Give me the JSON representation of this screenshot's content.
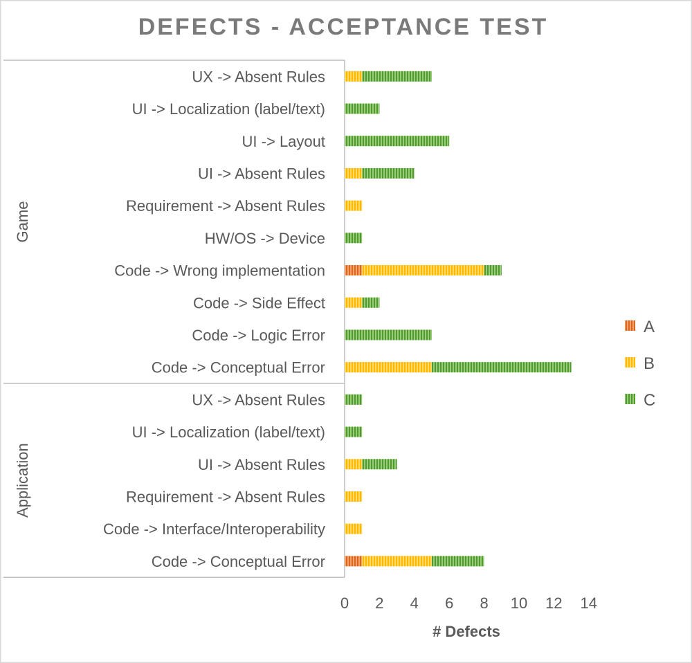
{
  "chart_data": {
    "type": "bar",
    "orientation": "horizontal",
    "stacked": true,
    "title": "DEFECTS - ACCEPTANCE TEST",
    "xlabel": "# Defects",
    "ylabel": "",
    "xlim": [
      0,
      14
    ],
    "xticks": [
      0,
      2,
      4,
      6,
      8,
      10,
      12,
      14
    ],
    "grid": false,
    "legend_position": "right",
    "groups": [
      {
        "name": "Game",
        "categories": [
          "UX -> Absent Rules",
          "UI -> Localization (label/text)",
          "UI -> Layout",
          "UI -> Absent Rules",
          "Requirement -> Absent Rules",
          "HW/OS -> Device",
          "Code -> Wrong implementation",
          "Code -> Side Effect",
          "Code -> Logic Error",
          "Code -> Conceptual Error"
        ]
      },
      {
        "name": "Application",
        "categories": [
          "UX -> Absent Rules",
          "UI -> Localization (label/text)",
          "UI -> Absent Rules",
          "Requirement -> Absent Rules",
          "Code -> Interface/Interoperability",
          "Code -> Conceptual Error"
        ]
      }
    ],
    "series": [
      {
        "name": "A",
        "color": "#ED7D31",
        "values": [
          0,
          0,
          0,
          0,
          0,
          0,
          1,
          0,
          0,
          0,
          0,
          0,
          0,
          0,
          0,
          1
        ]
      },
      {
        "name": "B",
        "color": "#FFC000",
        "values": [
          1,
          0,
          0,
          1,
          1,
          0,
          7,
          1,
          0,
          5,
          0,
          0,
          1,
          1,
          1,
          4
        ]
      },
      {
        "name": "C",
        "color": "#70AD47",
        "values": [
          4,
          2,
          6,
          3,
          0,
          1,
          1,
          1,
          5,
          8,
          1,
          1,
          2,
          0,
          0,
          3
        ]
      }
    ]
  }
}
